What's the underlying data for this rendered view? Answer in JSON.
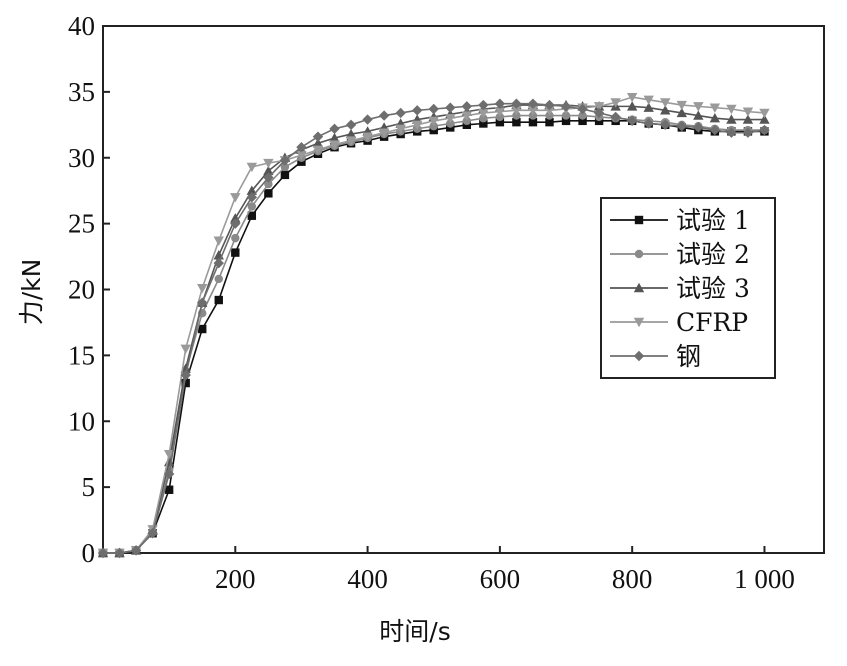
{
  "chart_data": {
    "type": "line",
    "xlabel": "时间/s",
    "ylabel": "力/kN",
    "xlim": [
      0,
      1090
    ],
    "ylim": [
      0,
      40
    ],
    "x_ticks": [
      200,
      400,
      600,
      800,
      1000
    ],
    "x_tick_labels": [
      "200",
      "400",
      "600",
      "800",
      "1 000"
    ],
    "y_ticks": [
      0,
      5,
      10,
      15,
      20,
      25,
      30,
      35,
      40
    ],
    "y_tick_labels": [
      "0",
      "5",
      "10",
      "15",
      "20",
      "25",
      "30",
      "35",
      "40"
    ],
    "grid": false,
    "legend_position": "center-right",
    "x": [
      0,
      25,
      50,
      75,
      100,
      125,
      150,
      175,
      200,
      225,
      250,
      275,
      300,
      325,
      350,
      375,
      400,
      425,
      450,
      475,
      500,
      525,
      550,
      575,
      600,
      625,
      650,
      675,
      700,
      725,
      750,
      775,
      800,
      825,
      850,
      875,
      900,
      925,
      950,
      975,
      1000
    ],
    "series": [
      {
        "name": "试验 1",
        "marker": "square",
        "color": "#111111",
        "values": [
          0,
          0,
          0.2,
          1.5,
          4.8,
          12.9,
          17.0,
          19.2,
          22.8,
          25.6,
          27.3,
          28.7,
          29.7,
          30.3,
          30.8,
          31.1,
          31.3,
          31.6,
          31.8,
          32.0,
          32.1,
          32.3,
          32.5,
          32.6,
          32.7,
          32.7,
          32.7,
          32.7,
          32.8,
          32.8,
          32.8,
          32.8,
          32.8,
          32.6,
          32.5,
          32.3,
          32.1,
          32.0,
          32.0,
          32.0,
          32.0
        ]
      },
      {
        "name": "试验 2",
        "marker": "circle",
        "color": "#8a8a8a",
        "values": [
          0,
          0,
          0.2,
          1.6,
          6.3,
          13.8,
          18.2,
          20.8,
          23.9,
          26.3,
          28.0,
          29.3,
          30.0,
          30.5,
          30.9,
          31.2,
          31.5,
          31.8,
          32.0,
          32.2,
          32.4,
          32.6,
          32.8,
          33.0,
          33.1,
          33.2,
          33.2,
          33.2,
          33.2,
          33.2,
          33.1,
          33.0,
          32.9,
          32.8,
          32.7,
          32.5,
          32.4,
          32.2,
          32.1,
          32.1,
          32.1
        ]
      },
      {
        "name": "试验 3",
        "marker": "triangle-up",
        "color": "#555555",
        "values": [
          0,
          0,
          0.2,
          1.7,
          6.9,
          14.0,
          19.0,
          22.6,
          25.4,
          27.5,
          29.0,
          30.0,
          30.6,
          31.1,
          31.5,
          31.8,
          32.0,
          32.3,
          32.6,
          32.9,
          33.1,
          33.3,
          33.5,
          33.7,
          33.8,
          34.0,
          34.0,
          34.0,
          34.0,
          33.9,
          33.9,
          33.9,
          33.9,
          33.8,
          33.6,
          33.4,
          33.2,
          33.0,
          32.9,
          32.9,
          32.9
        ]
      },
      {
        "name": "CFRP",
        "marker": "triangle-down",
        "color": "#9a9a9a",
        "values": [
          0,
          0,
          0.2,
          1.8,
          7.5,
          15.5,
          20.1,
          23.7,
          27.0,
          29.3,
          29.6,
          29.8,
          30.2,
          30.6,
          31.0,
          31.3,
          31.6,
          31.9,
          32.2,
          32.5,
          32.8,
          33.0,
          33.2,
          33.4,
          33.5,
          33.6,
          33.6,
          33.6,
          33.7,
          33.8,
          33.9,
          34.2,
          34.6,
          34.4,
          34.2,
          34.0,
          33.9,
          33.8,
          33.7,
          33.5,
          33.4
        ]
      },
      {
        "name": "钢",
        "marker": "diamond",
        "color": "#6e6e6e",
        "values": [
          0,
          0,
          0.2,
          1.5,
          6.0,
          13.5,
          19.0,
          22.0,
          25.0,
          27.0,
          28.5,
          29.8,
          30.8,
          31.6,
          32.2,
          32.5,
          32.9,
          33.2,
          33.4,
          33.6,
          33.7,
          33.8,
          33.9,
          34.0,
          34.1,
          34.1,
          34.1,
          34.0,
          33.9,
          33.7,
          33.4,
          33.1,
          32.8,
          32.6,
          32.5,
          32.4,
          32.3,
          32.1,
          31.9,
          31.9,
          32.1
        ]
      }
    ]
  }
}
